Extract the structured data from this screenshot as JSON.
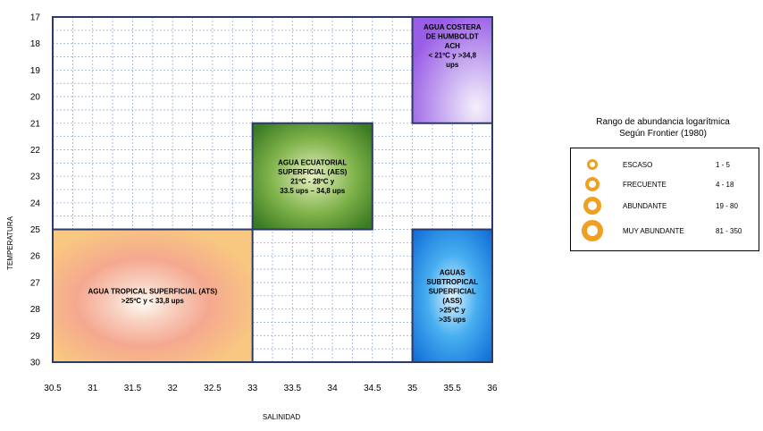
{
  "chart_data": {
    "type": "table",
    "xlabel": "SALINIDAD",
    "ylabel": "TEMPERATURA",
    "xlim": [
      30.5,
      36
    ],
    "ylim": [
      17,
      30
    ],
    "y_inverted": true,
    "x_ticks": [
      "30.5",
      "31",
      "31.5",
      "32",
      "32.5",
      "33",
      "33.5",
      "34",
      "34.5",
      "35",
      "35.5",
      "36"
    ],
    "y_ticks": [
      "17",
      "18",
      "19",
      "20",
      "21",
      "22",
      "23",
      "24",
      "25",
      "26",
      "27",
      "28",
      "29",
      "30"
    ],
    "grid": true,
    "regions": [
      {
        "id": "ach",
        "x_range": [
          35,
          36
        ],
        "y_range": [
          17,
          21
        ],
        "color": "#a070e0",
        "lines": [
          "AGUA COSTERA",
          "DE HUMBOLDT",
          "ACH",
          "< 21ºC  y  >34,8",
          "ups"
        ]
      },
      {
        "id": "aes",
        "x_range": [
          33,
          34.5
        ],
        "y_range": [
          21,
          25
        ],
        "color": "#4a8a2a",
        "lines": [
          "AGUA  ECUATORIAL",
          "SUPERFICIAL (AES)",
          "21ºC - 28ºC   y",
          "33.5 ups – 34,8 ups"
        ]
      },
      {
        "id": "ats",
        "x_range": [
          30.5,
          33
        ],
        "y_range": [
          25,
          30
        ],
        "color": "#f5b070",
        "lines": [
          "AGUA  TROPICAL SUPERFICIAL (ATS)",
          ">25ºC   y   < 33,8 ups"
        ]
      },
      {
        "id": "ass",
        "x_range": [
          35,
          36
        ],
        "y_range": [
          25,
          30
        ],
        "color": "#1a7ae0",
        "lines": [
          "AGUAS",
          "SUBTROPICAL",
          "SUPERFICIAL",
          "(ASS)",
          ">25ºC   y",
          ">35  ups"
        ]
      }
    ],
    "legend": {
      "placement": "right",
      "title_lines": [
        "Rango de abundancia logarítmica",
        "Según Frontier (1980)"
      ],
      "entries": [
        {
          "label": "ESCASO",
          "range": "1 - 5"
        },
        {
          "label": "FRECUENTE",
          "range": "4 - 18"
        },
        {
          "label": "ABUNDANTE",
          "range": "19 - 80"
        },
        {
          "label": "MUY ABUNDANTE",
          "range": "81 - 350"
        }
      ],
      "ring_color": "#f0a020"
    }
  }
}
